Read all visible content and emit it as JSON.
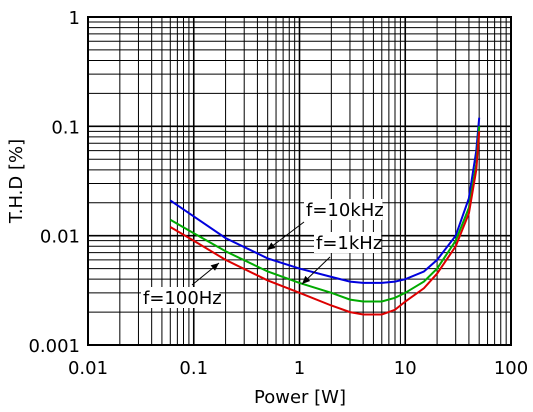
{
  "chart_data": {
    "type": "line",
    "xlabel": "Power [W]",
    "ylabel": "T.H.D [%]",
    "x_scale": "log",
    "y_scale": "log",
    "xlim": [
      0.01,
      100
    ],
    "ylim": [
      0.001,
      1
    ],
    "grid": true,
    "x_ticks": [
      "0.01",
      "0.1",
      "1",
      "10",
      "100"
    ],
    "y_ticks": [
      "0.001",
      "0.01",
      "0.1",
      "1"
    ],
    "series": [
      {
        "name": "f=10kHz",
        "color": "#0000dd",
        "points": [
          [
            0.06,
            0.021
          ],
          [
            0.1,
            0.015
          ],
          [
            0.2,
            0.0095
          ],
          [
            0.5,
            0.0062
          ],
          [
            1,
            0.005
          ],
          [
            2,
            0.0042
          ],
          [
            3,
            0.0038
          ],
          [
            4,
            0.0037
          ],
          [
            6,
            0.0037
          ],
          [
            8,
            0.0038
          ],
          [
            10,
            0.004
          ],
          [
            15,
            0.0047
          ],
          [
            20,
            0.006
          ],
          [
            30,
            0.01
          ],
          [
            40,
            0.022
          ],
          [
            47,
            0.06
          ],
          [
            50,
            0.12
          ]
        ]
      },
      {
        "name": "f=1kHz",
        "color": "#00aa00",
        "points": [
          [
            0.06,
            0.014
          ],
          [
            0.1,
            0.0105
          ],
          [
            0.2,
            0.0072
          ],
          [
            0.5,
            0.0047
          ],
          [
            1,
            0.0037
          ],
          [
            2,
            0.003
          ],
          [
            3,
            0.0026
          ],
          [
            4,
            0.0025
          ],
          [
            6,
            0.0025
          ],
          [
            8,
            0.0027
          ],
          [
            10,
            0.003
          ],
          [
            15,
            0.0038
          ],
          [
            20,
            0.005
          ],
          [
            30,
            0.009
          ],
          [
            40,
            0.018
          ],
          [
            47,
            0.045
          ],
          [
            50,
            0.1
          ]
        ]
      },
      {
        "name": "f=100Hz",
        "color": "#dd0000",
        "points": [
          [
            0.06,
            0.012
          ],
          [
            0.1,
            0.009
          ],
          [
            0.2,
            0.006
          ],
          [
            0.5,
            0.0039
          ],
          [
            1,
            0.003
          ],
          [
            2,
            0.0023
          ],
          [
            3,
            0.002
          ],
          [
            4,
            0.0019
          ],
          [
            6,
            0.0019
          ],
          [
            8,
            0.0021
          ],
          [
            10,
            0.0025
          ],
          [
            15,
            0.0033
          ],
          [
            20,
            0.0045
          ],
          [
            30,
            0.008
          ],
          [
            40,
            0.016
          ],
          [
            47,
            0.04
          ],
          [
            50,
            0.09
          ]
        ]
      }
    ],
    "annotations": [
      {
        "text": "f=10kHz",
        "target": "f=10kHz"
      },
      {
        "text": "f=1kHz",
        "target": "f=1kHz"
      },
      {
        "text": "f=100Hz",
        "target": "f=100Hz"
      }
    ]
  }
}
